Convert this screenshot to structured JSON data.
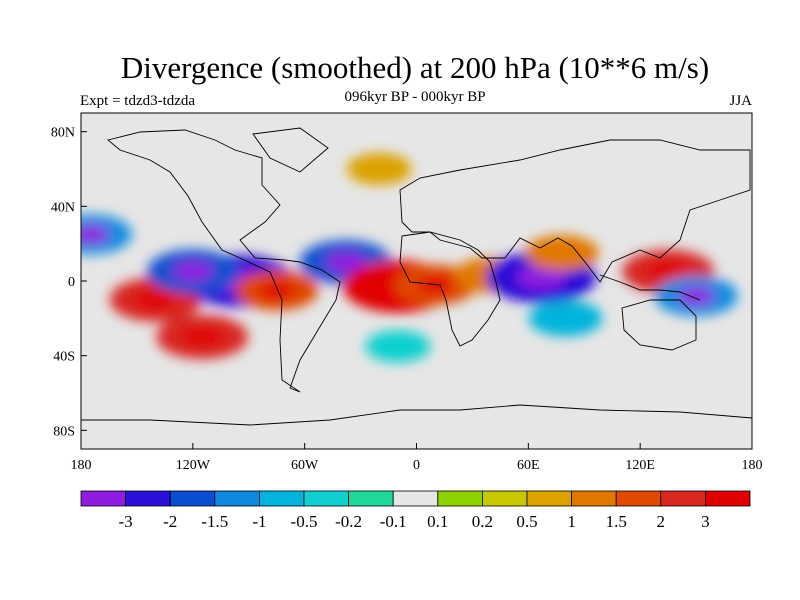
{
  "title": "Divergence (smoothed) at 200 hPa (10**6 m/s)",
  "subtitle": "096kyr BP - 000kyr BP",
  "experiment": "Expt = tdzd3-tdzda",
  "season": "JJA",
  "axes": {
    "x_ticks": [
      "180",
      "120W",
      "60W",
      "0",
      "60E",
      "120E",
      "180"
    ],
    "y_ticks": [
      "80N",
      "40N",
      "0",
      "40S",
      "80S"
    ]
  },
  "colorbar": {
    "labels": [
      "-3",
      "-2",
      "-1.5",
      "-1",
      "-0.5",
      "-0.2",
      "-0.1",
      "0.1",
      "0.2",
      "0.5",
      "1",
      "1.5",
      "2",
      "3"
    ],
    "colors": [
      "#8f1de0",
      "#2a10d8",
      "#0b4fd0",
      "#0d8ae0",
      "#00b4dc",
      "#10d0cf",
      "#20d79a",
      "#e6e6e6",
      "#8fd000",
      "#c8c800",
      "#dca200",
      "#e07800",
      "#df4a00",
      "#d82820",
      "#e00000"
    ]
  },
  "chart_data": {
    "type": "heatmap",
    "title": "Divergence (smoothed) at 200 hPa (10**6 m/s)",
    "subtitle": "096kyr BP - 000kyr BP",
    "variable_units": "10**6 m/s",
    "xlim": [
      -180,
      180
    ],
    "ylim": [
      -90,
      90
    ],
    "contour_levels": [
      -3,
      -2,
      -1.5,
      -1,
      -0.5,
      -0.2,
      -0.1,
      0.1,
      0.2,
      0.5,
      1,
      1.5,
      2,
      3
    ],
    "features": [
      {
        "region": "eastern Pacific (~140W, 10S)",
        "lon": -140,
        "lat": -10,
        "value": 2
      },
      {
        "region": "South Pacific (~115W, 30S)",
        "lon": -115,
        "lat": -30,
        "value": 2
      },
      {
        "region": "eastern Pacific (~95W, 0)",
        "lon": -95,
        "lat": 0,
        "value": -3
      },
      {
        "region": "eastern Pacific (~120W, 5N)",
        "lon": -120,
        "lat": 5,
        "value": -2
      },
      {
        "region": "North Pacific (~175W, 25N)",
        "lon": -175,
        "lat": 25,
        "value": -1.5
      },
      {
        "region": "central America (~75W, 5S)",
        "lon": -75,
        "lat": -5,
        "value": 1.5
      },
      {
        "region": "tropical Atlantic (~38W, 10N)",
        "lon": -38,
        "lat": 10,
        "value": -2
      },
      {
        "region": "equatorial Atlantic (~10W, 3S)",
        "lon": -10,
        "lat": -3,
        "value": 3
      },
      {
        "region": "Gulf of Guinea (~10E, 2S)",
        "lon": 10,
        "lat": -2,
        "value": 1.5
      },
      {
        "region": "East Africa (~40E, 3N)",
        "lon": 40,
        "lat": 3,
        "value": 1
      },
      {
        "region": "Arabian Sea (~67E, 2N)",
        "lon": 67,
        "lat": 2,
        "value": -3
      },
      {
        "region": "India (~78E, 15N)",
        "lon": 78,
        "lat": 15,
        "value": 1
      },
      {
        "region": "western Pacific (~135E, 5N)",
        "lon": 135,
        "lat": 5,
        "value": 2
      },
      {
        "region": "western Pacific (~150E, 8S)",
        "lon": 150,
        "lat": -8,
        "value": -1.5
      },
      {
        "region": "southern Indian Ocean (~80E, 20S)",
        "lon": 80,
        "lat": -20,
        "value": -1
      },
      {
        "region": "North Atlantic (~20W, 60N)",
        "lon": -20,
        "lat": 60,
        "value": 0.5
      },
      {
        "region": "South Atlantic (~10W, 35S)",
        "lon": -10,
        "lat": -35,
        "value": -0.5
      }
    ]
  }
}
